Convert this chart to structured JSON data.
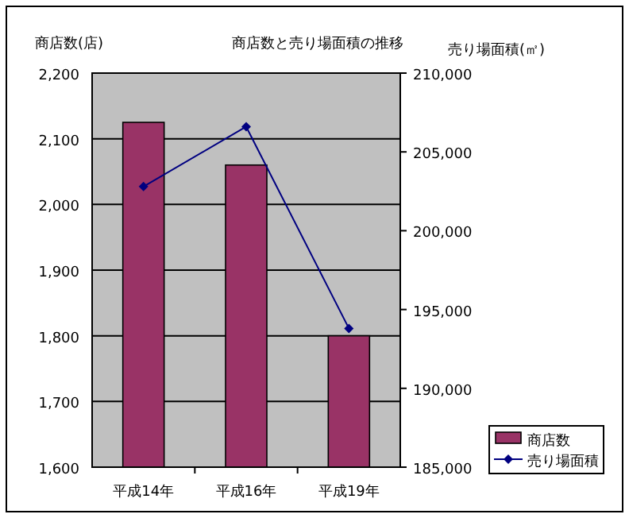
{
  "chart_data": {
    "type": "bar",
    "title": "商店数と売り場面積の推移",
    "ylabel": "商店数(店)",
    "y2label": "売り場面積(㎡)",
    "categories": [
      "平成14年",
      "平成16年",
      "平成19年"
    ],
    "series": [
      {
        "name": "商店数",
        "color": "#993366",
        "values": [
          2125,
          2060,
          1800
        ]
      },
      {
        "name": "売り場面積",
        "type": "line",
        "axis": "y2",
        "color": "#000080",
        "marker": "diamond",
        "values": [
          202800,
          206600,
          193800
        ]
      }
    ],
    "ylim": [
      1600,
      2200
    ],
    "yticks": [
      {
        "value": 1600,
        "label": "1,600"
      },
      {
        "value": 1700,
        "label": "1,700"
      },
      {
        "value": 1800,
        "label": "1,800"
      },
      {
        "value": 1900,
        "label": "1,900"
      },
      {
        "value": 2000,
        "label": "2,000"
      },
      {
        "value": 2100,
        "label": "2,100"
      },
      {
        "value": 2200,
        "label": "2,200"
      }
    ],
    "y2lim": [
      185000,
      210000
    ],
    "y2ticks": [
      {
        "value": 185000,
        "label": "185,000"
      },
      {
        "value": 190000,
        "label": "190,000"
      },
      {
        "value": 195000,
        "label": "195,000"
      },
      {
        "value": 200000,
        "label": "200,000"
      },
      {
        "value": 205000,
        "label": "205,000"
      },
      {
        "value": 210000,
        "label": "210,000"
      }
    ],
    "grid": "y",
    "legend": "bottom right"
  }
}
